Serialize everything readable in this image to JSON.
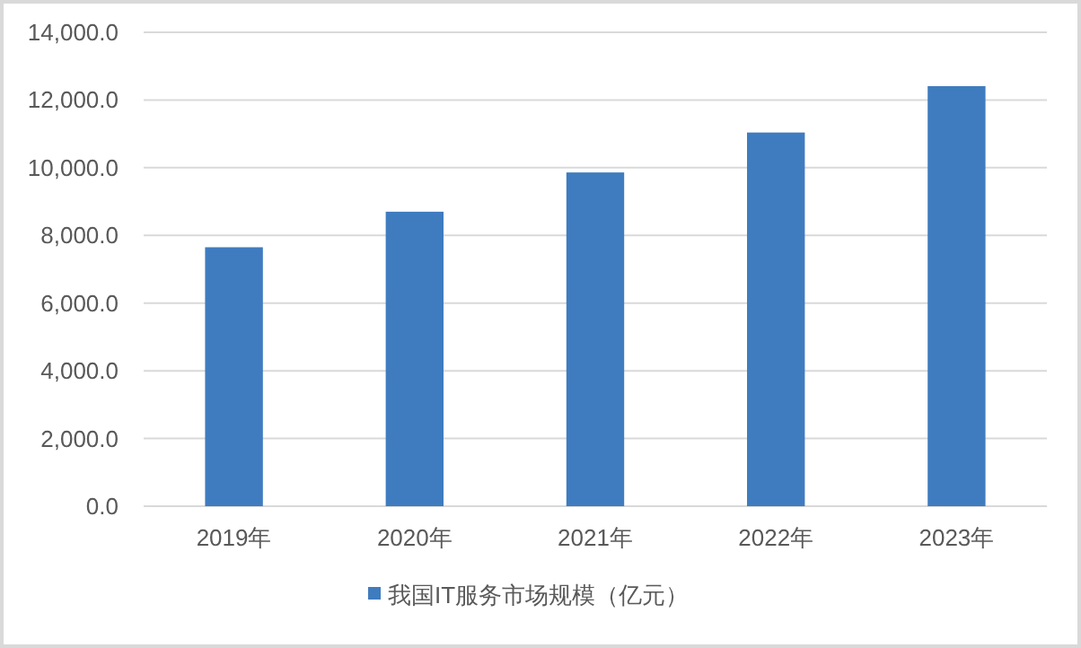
{
  "chart_data": {
    "type": "bar",
    "categories": [
      "2019年",
      "2020年",
      "2021年",
      "2022年",
      "2023年"
    ],
    "series": [
      {
        "name": "我国IT服务市场规模（亿元）",
        "color": "#3f7cbf",
        "values": [
          7650,
          8700,
          9860,
          11040,
          12410
        ]
      }
    ],
    "ylim": [
      0,
      14000
    ],
    "yticks": [
      {
        "value": 0,
        "label": "0.0"
      },
      {
        "value": 2000,
        "label": "2,000.0"
      },
      {
        "value": 4000,
        "label": "4,000.0"
      },
      {
        "value": 6000,
        "label": "6,000.0"
      },
      {
        "value": 8000,
        "label": "8,000.0"
      },
      {
        "value": 10000,
        "label": "10,000.0"
      },
      {
        "value": 12000,
        "label": "12,000.0"
      },
      {
        "value": 14000,
        "label": "14,000.0"
      }
    ],
    "grid": "y",
    "legend": "bottom"
  }
}
